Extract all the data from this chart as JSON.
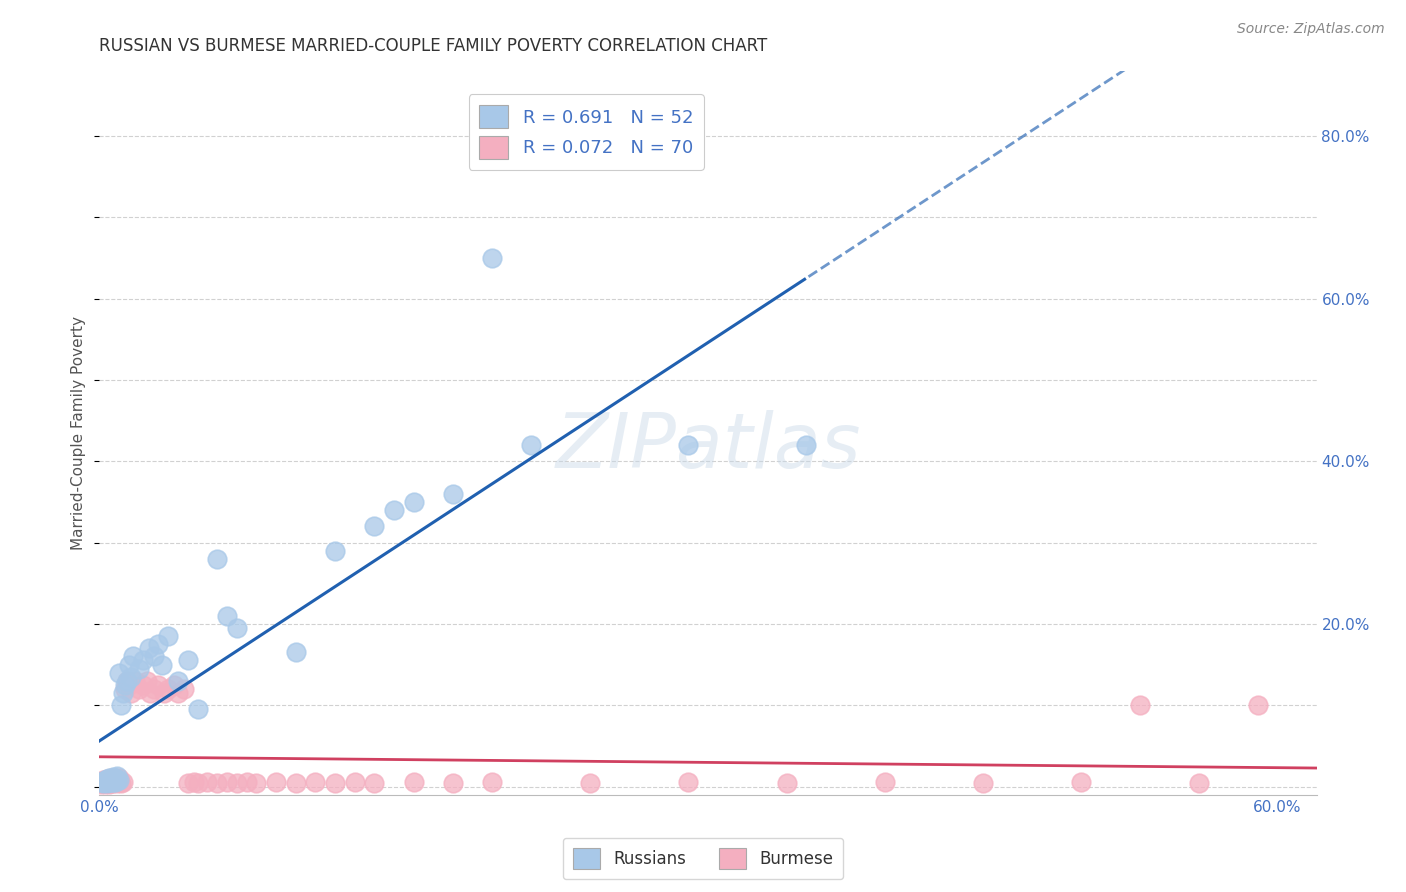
{
  "title": "RUSSIAN VS BURMESE MARRIED-COUPLE FAMILY POVERTY CORRELATION CHART",
  "source": "Source: ZipAtlas.com",
  "ylabel": "Married-Couple Family Poverty",
  "xlim": [
    0.0,
    0.62
  ],
  "ylim": [
    -0.01,
    0.88
  ],
  "russian_R": 0.691,
  "russian_N": 52,
  "burmese_R": 0.072,
  "burmese_N": 70,
  "russian_color": "#a8c8e8",
  "burmese_color": "#f4afc0",
  "russian_line_color": "#2060b0",
  "burmese_line_color": "#d04060",
  "background_color": "#ffffff",
  "grid_color": "#cccccc",
  "watermark": "ZIPatlas",
  "russian_x": [
    0.001,
    0.002,
    0.002,
    0.003,
    0.003,
    0.004,
    0.004,
    0.004,
    0.005,
    0.005,
    0.005,
    0.006,
    0.006,
    0.007,
    0.007,
    0.007,
    0.008,
    0.008,
    0.009,
    0.009,
    0.01,
    0.01,
    0.011,
    0.012,
    0.013,
    0.014,
    0.015,
    0.016,
    0.017,
    0.02,
    0.022,
    0.025,
    0.028,
    0.03,
    0.032,
    0.035,
    0.04,
    0.045,
    0.05,
    0.06,
    0.065,
    0.07,
    0.1,
    0.12,
    0.14,
    0.15,
    0.16,
    0.18,
    0.2,
    0.22,
    0.3,
    0.36
  ],
  "russian_y": [
    0.005,
    0.004,
    0.006,
    0.005,
    0.008,
    0.004,
    0.006,
    0.009,
    0.005,
    0.007,
    0.01,
    0.006,
    0.008,
    0.005,
    0.007,
    0.012,
    0.006,
    0.011,
    0.007,
    0.013,
    0.008,
    0.14,
    0.1,
    0.115,
    0.125,
    0.13,
    0.15,
    0.135,
    0.16,
    0.145,
    0.155,
    0.17,
    0.16,
    0.175,
    0.15,
    0.185,
    0.13,
    0.155,
    0.095,
    0.28,
    0.21,
    0.195,
    0.165,
    0.29,
    0.32,
    0.34,
    0.35,
    0.36,
    0.65,
    0.42,
    0.42,
    0.42
  ],
  "burmese_x": [
    0.001,
    0.001,
    0.002,
    0.002,
    0.002,
    0.003,
    0.003,
    0.003,
    0.004,
    0.004,
    0.004,
    0.005,
    0.005,
    0.005,
    0.006,
    0.006,
    0.006,
    0.007,
    0.007,
    0.008,
    0.008,
    0.009,
    0.009,
    0.01,
    0.01,
    0.011,
    0.012,
    0.013,
    0.014,
    0.015,
    0.016,
    0.018,
    0.02,
    0.022,
    0.024,
    0.026,
    0.028,
    0.03,
    0.033,
    0.035,
    0.038,
    0.04,
    0.043,
    0.045,
    0.048,
    0.05,
    0.055,
    0.06,
    0.065,
    0.07,
    0.075,
    0.08,
    0.09,
    0.1,
    0.11,
    0.12,
    0.13,
    0.14,
    0.16,
    0.18,
    0.2,
    0.25,
    0.3,
    0.35,
    0.4,
    0.45,
    0.5,
    0.53,
    0.56,
    0.59
  ],
  "burmese_y": [
    0.003,
    0.005,
    0.004,
    0.006,
    0.008,
    0.003,
    0.005,
    0.007,
    0.004,
    0.006,
    0.009,
    0.003,
    0.005,
    0.008,
    0.004,
    0.006,
    0.01,
    0.004,
    0.007,
    0.005,
    0.009,
    0.004,
    0.008,
    0.005,
    0.01,
    0.004,
    0.006,
    0.12,
    0.13,
    0.125,
    0.115,
    0.13,
    0.12,
    0.125,
    0.13,
    0.115,
    0.12,
    0.125,
    0.115,
    0.12,
    0.125,
    0.115,
    0.12,
    0.004,
    0.005,
    0.004,
    0.006,
    0.004,
    0.005,
    0.004,
    0.006,
    0.004,
    0.005,
    0.004,
    0.005,
    0.004,
    0.005,
    0.004,
    0.005,
    0.004,
    0.005,
    0.004,
    0.005,
    0.004,
    0.005,
    0.004,
    0.005,
    0.1,
    0.004,
    0.1
  ]
}
